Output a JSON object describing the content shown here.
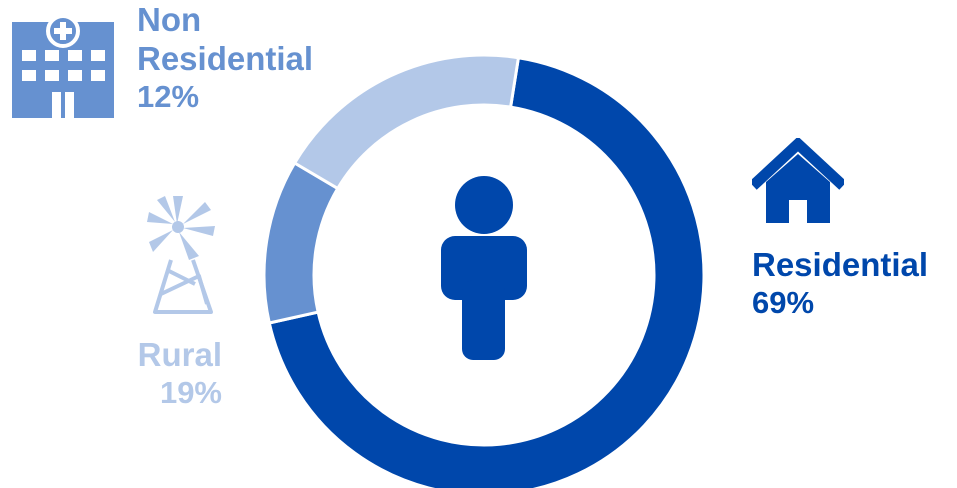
{
  "chart_data": {
    "type": "pie",
    "donut": true,
    "categories": [
      "Residential",
      "Non Residential",
      "Rural"
    ],
    "values": [
      69,
      12,
      19
    ],
    "value_labels": [
      "69%",
      "12%",
      "19%"
    ],
    "label_lines": {
      "Residential": [
        "Residential"
      ],
      "Non Residential": [
        "Non",
        "Residential"
      ],
      "Rural": [
        "Rural"
      ]
    },
    "colors": {
      "Residential": "#0047AB",
      "Non Residential": "#6691D0",
      "Rural": "#B3C8E8"
    },
    "center_icon": "person-icon",
    "segment_icons": {
      "Residential": "house-icon",
      "Non Residential": "hospital-icon",
      "Rural": "windmill-icon"
    },
    "start_angle_deg": 9,
    "direction": "clockwise"
  }
}
